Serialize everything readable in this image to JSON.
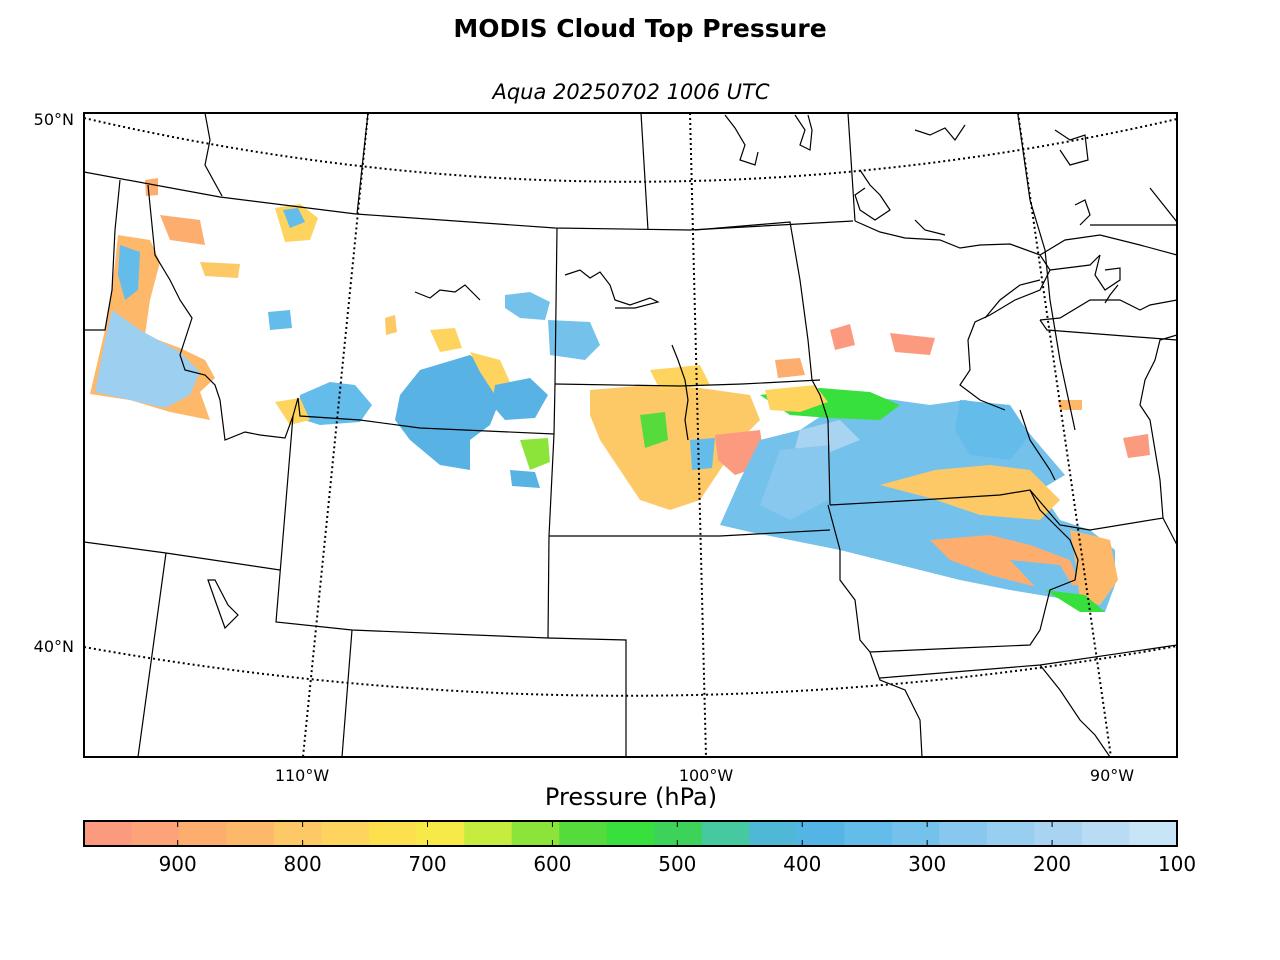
{
  "title": "MODIS Cloud Top Pressure",
  "subtitle": "Aqua 20250702 1006 UTC",
  "latitude_labels": [
    "50°N",
    "40°N"
  ],
  "longitude_labels": [
    "110°W",
    "100°W",
    "90°W"
  ],
  "colorbar": {
    "label": "Pressure (hPa)",
    "min": 975,
    "max": 100,
    "tick_values": [
      900,
      800,
      700,
      600,
      500,
      400,
      300,
      200,
      100
    ],
    "tick_labels": [
      "900",
      "800",
      "700",
      "600",
      "500",
      "400",
      "300",
      "200",
      "100"
    ],
    "colors": [
      "#fc9a7f",
      "#fda37a",
      "#fdae6f",
      "#fdb86a",
      "#fdc866",
      "#fed45e",
      "#fde04e",
      "#f7ea48",
      "#c6ec40",
      "#8ce43a",
      "#55dc3c",
      "#37e03c",
      "#3dd35a",
      "#46c8a0",
      "#4fb8d6",
      "#54b4e6",
      "#63bcea",
      "#74c2ec",
      "#88c8ee",
      "#98ceef",
      "#a8d4f1",
      "#b8dcf4",
      "#c8e4f7"
    ]
  },
  "chart_data": {
    "type": "heatmap",
    "title": "MODIS Cloud Top Pressure",
    "subtitle": "Aqua 20250702 1006 UTC",
    "units": "hPa",
    "lat_range": [
      38,
      50
    ],
    "lon_range": [
      -116,
      -88
    ],
    "graticule_lats": [
      40,
      50
    ],
    "graticule_lons": [
      -110,
      -100,
      -90
    ],
    "cloud_regions": [
      {
        "center_lat": 45.6,
        "center_lon": -96.0,
        "pressure_hpa": 280
      },
      {
        "center_lat": 43.3,
        "center_lon": -94.0,
        "pressure_hpa": 300
      },
      {
        "center_lat": 46.7,
        "center_lon": -105.6,
        "pressure_hpa": 340
      },
      {
        "center_lat": 47.2,
        "center_lon": -114.6,
        "pressure_hpa": 320
      },
      {
        "center_lat": 47.6,
        "center_lon": -102.7,
        "pressure_hpa": 360
      },
      {
        "center_lat": 46.3,
        "center_lon": -100.8,
        "pressure_hpa": 720
      },
      {
        "center_lat": 48.1,
        "center_lon": -92.6,
        "pressure_hpa": 900
      },
      {
        "center_lat": 43.2,
        "center_lon": -89.4,
        "pressure_hpa": 780
      }
    ]
  }
}
